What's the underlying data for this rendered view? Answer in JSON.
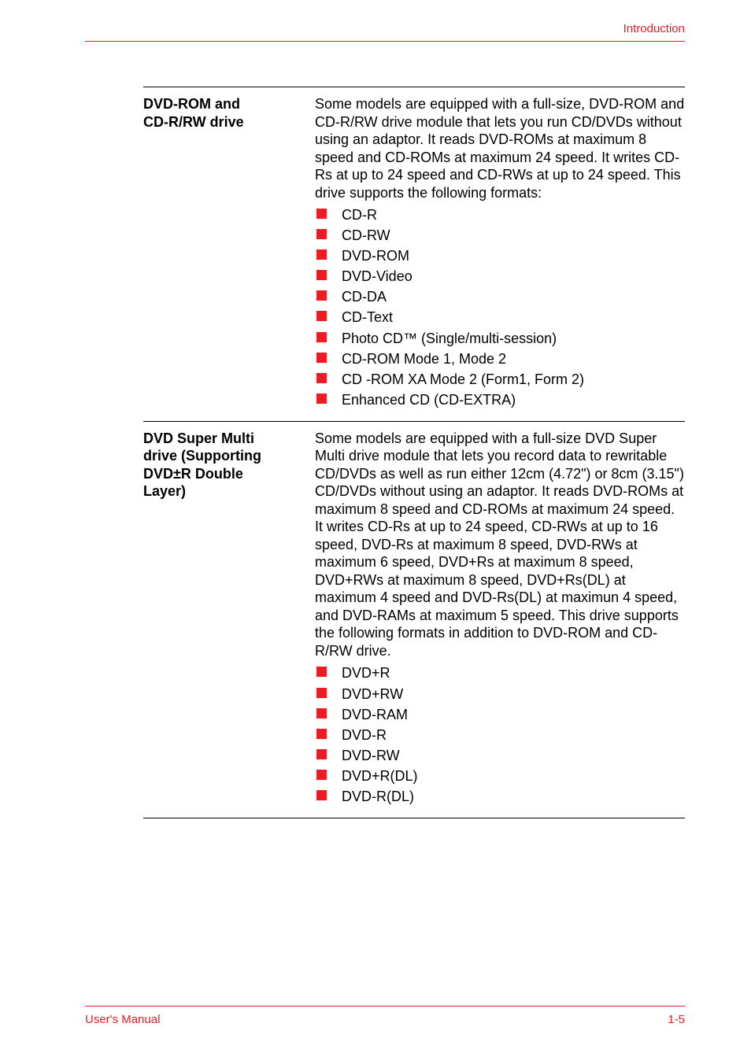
{
  "header": {
    "section": "Introduction"
  },
  "footer": {
    "left": "User's Manual",
    "right": "1-5"
  },
  "colors": {
    "accent": "#ed1c24",
    "text": "#000000",
    "bg": "#ffffff"
  },
  "rows": [
    {
      "label_line1": "DVD-ROM and",
      "label_line2": "CD-R/RW drive",
      "description": "Some models are equipped with a full-size, DVD-ROM and CD-R/RW drive module that lets you run CD/DVDs without using an adaptor. It reads DVD-ROMs at maximum 8 speed and CD-ROMs at maximum 24 speed. It writes CD-Rs at up to 24 speed and CD-RWs at up to 24 speed. This drive supports the following formats:",
      "items": [
        "CD-R",
        "CD-RW",
        "DVD-ROM",
        "DVD-Video",
        "CD-DA",
        "CD-Text",
        "Photo CD™ (Single/multi-session)",
        "CD-ROM Mode 1, Mode 2",
        "CD -ROM XA Mode 2 (Form1, Form 2)",
        "Enhanced CD (CD-EXTRA)"
      ]
    },
    {
      "label_line1": "DVD Super Multi",
      "label_line2": "drive (Supporting",
      "label_line3": "DVD±R Double",
      "label_line4": "Layer)",
      "description": "Some models are equipped with a full-size DVD Super Multi drive module that lets you record data to rewritable CD/DVDs as well as run either 12cm (4.72\") or 8cm (3.15\") CD/DVDs without using an adaptor. It reads DVD-ROMs at maximum 8 speed and CD-ROMs at maximum 24 speed. It writes CD-Rs at up to 24 speed, CD-RWs at up to 16 speed, DVD-Rs at maximum 8 speed, DVD-RWs at maximum 6 speed, DVD+Rs at maximum 8 speed, DVD+RWs at maximum 8 speed, DVD+Rs(DL) at maximum 4 speed and DVD-Rs(DL) at maximun 4 speed, and DVD-RAMs at maximum 5 speed. This drive supports the following formats in addition to DVD-ROM and CD-R/RW drive.",
      "items": [
        "DVD+R",
        "DVD+RW",
        "DVD-RAM",
        "DVD-R",
        "DVD-RW",
        "DVD+R(DL)",
        "DVD-R(DL)"
      ]
    }
  ]
}
